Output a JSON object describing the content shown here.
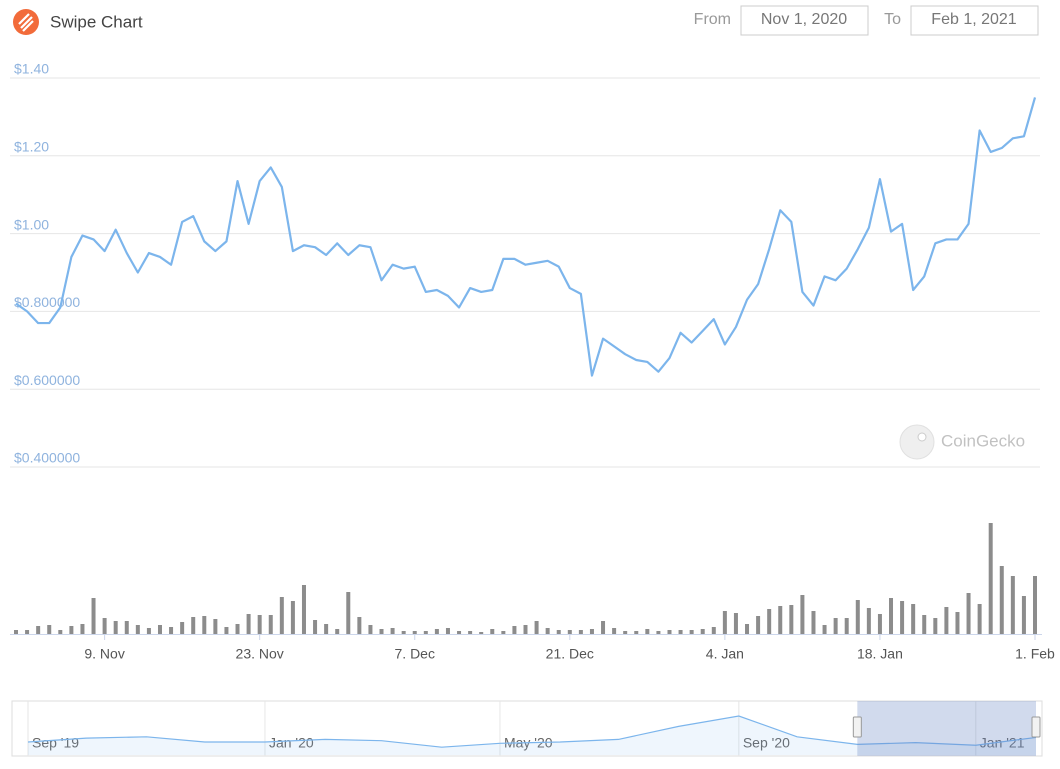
{
  "header": {
    "title": "Swipe Chart",
    "from_label": "From",
    "from": "Nov 1, 2020",
    "to_label": "To",
    "to": "Feb 1, 2021"
  },
  "watermark": "CoinGecko",
  "chart_data": [
    {
      "type": "line",
      "x": [
        "2020-11-01",
        "2020-11-02",
        "2020-11-03",
        "2020-11-04",
        "2020-11-05",
        "2020-11-06",
        "2020-11-07",
        "2020-11-08",
        "2020-11-09",
        "2020-11-10",
        "2020-11-11",
        "2020-11-12",
        "2020-11-13",
        "2020-11-14",
        "2020-11-15",
        "2020-11-16",
        "2020-11-17",
        "2020-11-18",
        "2020-11-19",
        "2020-11-20",
        "2020-11-21",
        "2020-11-22",
        "2020-11-23",
        "2020-11-24",
        "2020-11-25",
        "2020-11-26",
        "2020-11-27",
        "2020-11-28",
        "2020-11-29",
        "2020-11-30",
        "2020-12-01",
        "2020-12-02",
        "2020-12-03",
        "2020-12-04",
        "2020-12-05",
        "2020-12-06",
        "2020-12-07",
        "2020-12-08",
        "2020-12-09",
        "2020-12-10",
        "2020-12-11",
        "2020-12-12",
        "2020-12-13",
        "2020-12-14",
        "2020-12-15",
        "2020-12-16",
        "2020-12-17",
        "2020-12-18",
        "2020-12-19",
        "2020-12-20",
        "2020-12-21",
        "2020-12-22",
        "2020-12-23",
        "2020-12-24",
        "2020-12-25",
        "2020-12-26",
        "2020-12-27",
        "2020-12-28",
        "2020-12-29",
        "2020-12-30",
        "2020-12-31",
        "2021-01-01",
        "2021-01-02",
        "2021-01-03",
        "2021-01-04",
        "2021-01-05",
        "2021-01-06",
        "2021-01-07",
        "2021-01-08",
        "2021-01-09",
        "2021-01-10",
        "2021-01-11",
        "2021-01-12",
        "2021-01-13",
        "2021-01-14",
        "2021-01-15",
        "2021-01-16",
        "2021-01-17",
        "2021-01-18",
        "2021-01-19",
        "2021-01-20",
        "2021-01-21",
        "2021-01-22",
        "2021-01-23",
        "2021-01-24",
        "2021-01-25",
        "2021-01-26",
        "2021-01-27",
        "2021-01-28",
        "2021-01-29",
        "2021-01-30",
        "2021-01-31",
        "2021-02-01"
      ],
      "xlim": [
        "2020-11-01",
        "2021-02-01"
      ],
      "xticks": [
        {
          "value": "2020-11-09",
          "label": "9. Nov"
        },
        {
          "value": "2020-11-23",
          "label": "23. Nov"
        },
        {
          "value": "2020-12-07",
          "label": "7. Dec"
        },
        {
          "value": "2020-12-21",
          "label": "21. Dec"
        },
        {
          "value": "2021-01-04",
          "label": "4. Jan"
        },
        {
          "value": "2021-01-18",
          "label": "18. Jan"
        },
        {
          "value": "2021-02-01",
          "label": "1. Feb"
        }
      ],
      "ylim": [
        0.4,
        1.4
      ],
      "yticks": [
        {
          "value": 0.4,
          "label": "$0.400000"
        },
        {
          "value": 0.6,
          "label": "$0.600000"
        },
        {
          "value": 0.8,
          "label": "$0.800000"
        },
        {
          "value": 1.0,
          "label": "$1.00"
        },
        {
          "value": 1.2,
          "label": "$1.20"
        },
        {
          "value": 1.4,
          "label": "$1.40"
        }
      ],
      "y2lim": [
        0,
        115
      ],
      "grid": true,
      "series": [
        {
          "type": "line",
          "color": "#7cb5ec",
          "values": [
            0.82,
            0.8,
            0.77,
            0.77,
            0.81,
            0.94,
            0.995,
            0.985,
            0.955,
            1.01,
            0.95,
            0.9,
            0.95,
            0.94,
            0.92,
            1.03,
            1.045,
            0.98,
            0.955,
            0.98,
            1.135,
            1.025,
            1.135,
            1.17,
            1.12,
            0.955,
            0.97,
            0.965,
            0.945,
            0.975,
            0.945,
            0.97,
            0.965,
            0.88,
            0.92,
            0.91,
            0.915,
            0.85,
            0.855,
            0.84,
            0.81,
            0.86,
            0.85,
            0.855,
            0.935,
            0.935,
            0.92,
            0.925,
            0.93,
            0.915,
            0.86,
            0.845,
            0.635,
            0.73,
            0.71,
            0.69,
            0.675,
            0.67,
            0.645,
            0.68,
            0.745,
            0.72,
            0.75,
            0.78,
            0.715,
            0.76,
            0.83,
            0.87,
            0.96,
            1.06,
            1.03,
            0.85,
            0.815,
            0.89,
            0.88,
            0.91,
            0.96,
            1.015,
            1.14,
            1.005,
            1.025,
            0.855,
            0.89,
            0.975,
            0.985,
            0.985,
            1.025,
            1.265,
            1.21,
            1.22,
            1.245,
            1.25,
            1.35
          ]
        },
        {
          "type": "bar",
          "axis": "y2",
          "color": "#8c8c8c",
          "values": [
            4,
            4,
            8,
            9,
            4,
            8,
            10,
            36,
            16,
            13,
            13,
            9,
            6,
            9,
            7,
            12,
            17,
            18,
            15,
            7,
            10,
            20,
            19,
            19,
            37,
            33,
            49,
            14,
            10,
            5,
            42,
            17,
            9,
            5,
            6,
            3,
            3,
            3,
            5,
            6,
            3,
            3,
            2,
            5,
            3,
            8,
            9,
            13,
            6,
            4,
            4,
            4,
            5,
            13,
            6,
            3,
            3,
            5,
            3,
            4,
            4,
            4,
            5,
            7,
            23,
            21,
            10,
            18,
            25,
            28,
            29,
            39,
            23,
            9,
            16,
            16,
            34,
            26,
            20,
            36,
            33,
            30,
            19,
            16,
            27,
            22,
            41,
            30,
            111,
            68,
            58,
            38,
            58
          ]
        }
      ]
    },
    {
      "type": "line",
      "x": [
        "2019-09",
        "2019-10",
        "2019-11",
        "2019-12",
        "2020-01",
        "2020-02",
        "2020-03",
        "2020-04",
        "2020-05",
        "2020-06",
        "2020-07",
        "2020-08",
        "2020-09",
        "2020-10",
        "2020-11",
        "2020-12",
        "2021-01",
        "2021-02"
      ],
      "values": [
        1.0,
        1.3,
        1.4,
        1.0,
        1.0,
        1.2,
        1.1,
        0.6,
        0.9,
        1.0,
        1.2,
        2.2,
        3.0,
        1.4,
        0.82,
        0.95,
        0.75,
        1.35
      ],
      "color": "#7cb5ec",
      "xlim": [
        "2019-09",
        "2021-02"
      ],
      "xticks": [
        {
          "value": "2019-09",
          "label": "Sep '19"
        },
        {
          "value": "2020-01",
          "label": "Jan '20"
        },
        {
          "value": "2020-05",
          "label": "May '20"
        },
        {
          "value": "2020-09",
          "label": "Sep '20"
        },
        {
          "value": "2021-01",
          "label": "Jan '21"
        }
      ],
      "ylim": [
        0,
        4
      ]
    }
  ]
}
